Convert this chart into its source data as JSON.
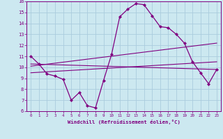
{
  "xlabel": "Windchill (Refroidissement éolien,°C)",
  "xlim": [
    -0.5,
    23.5
  ],
  "ylim": [
    6,
    16
  ],
  "yticks": [
    6,
    7,
    8,
    9,
    10,
    11,
    12,
    13,
    14,
    15,
    16
  ],
  "xticks": [
    0,
    1,
    2,
    3,
    4,
    5,
    6,
    7,
    8,
    9,
    10,
    11,
    12,
    13,
    14,
    15,
    16,
    17,
    18,
    19,
    20,
    21,
    22,
    23
  ],
  "line_color": "#800080",
  "bg_color": "#cce8f0",
  "grid_color": "#aaccdd",
  "main_line": {
    "x": [
      0,
      1,
      2,
      3,
      4,
      5,
      6,
      7,
      8,
      9,
      10,
      11,
      12,
      13,
      14,
      15,
      16,
      17,
      18,
      19,
      20,
      21,
      22,
      23
    ],
    "y": [
      11.0,
      10.3,
      9.4,
      9.2,
      8.9,
      7.0,
      7.7,
      6.5,
      6.3,
      8.8,
      11.2,
      14.6,
      15.3,
      15.8,
      15.7,
      14.7,
      13.7,
      13.6,
      13.0,
      12.2,
      10.5,
      9.5,
      8.5,
      9.8
    ]
  },
  "straight_lines": [
    {
      "x0": 0,
      "y0": 9.5,
      "x1": 23,
      "y1": 10.5
    },
    {
      "x0": 0,
      "y0": 10.1,
      "x1": 23,
      "y1": 12.2
    },
    {
      "x0": 0,
      "y0": 10.3,
      "x1": 23,
      "y1": 9.8
    }
  ]
}
